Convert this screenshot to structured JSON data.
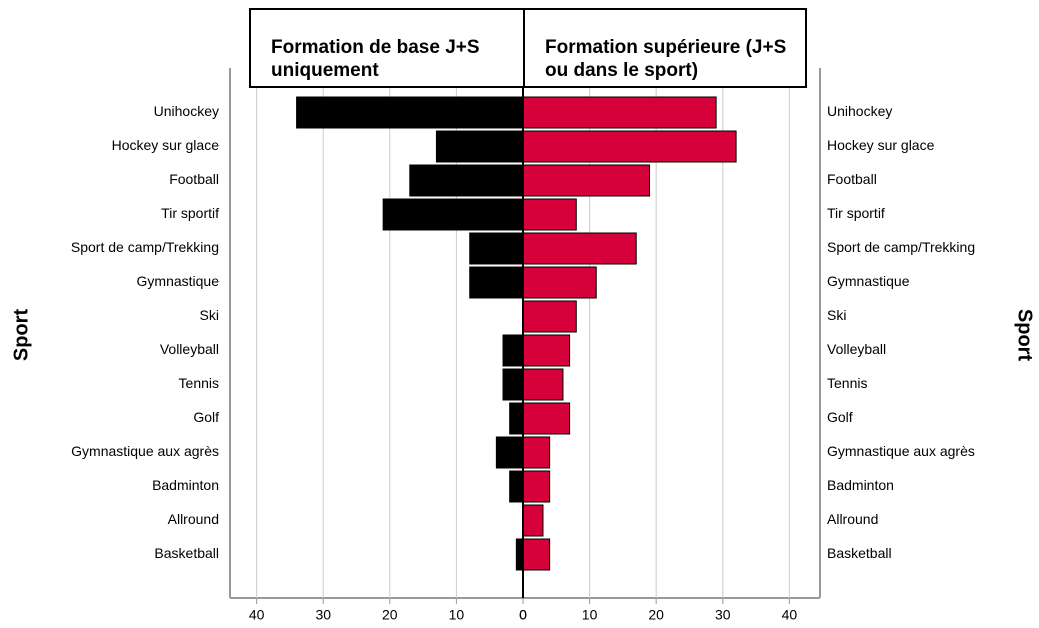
{
  "chart_data": {
    "type": "butterfly",
    "categories": [
      "Unihockey",
      "Hockey sur glace",
      "Football",
      "Tir sportif",
      "Sport de camp/Trekking",
      "Gymnastique",
      "Ski",
      "Volleyball",
      "Tennis",
      "Golf",
      "Gymnastique aux agrès",
      "Badminton",
      "Allround",
      "Basketball"
    ],
    "series": [
      {
        "name": "Formation de base J+S uniquement",
        "color": "#000000",
        "side": "left",
        "values": [
          34,
          13,
          17,
          21,
          8,
          8,
          0,
          3,
          3,
          2,
          4,
          2,
          0,
          1
        ]
      },
      {
        "name": "Formation supérieure (J+S ou dans le sport)",
        "color": "#d6003a",
        "side": "right",
        "values": [
          29,
          32,
          19,
          8,
          17,
          11,
          8,
          7,
          6,
          7,
          4,
          4,
          3,
          4
        ]
      }
    ],
    "ylabel": "Sport",
    "xlim": [
      0,
      44
    ],
    "xticks": [
      0,
      10,
      20,
      30,
      40
    ],
    "grid": true
  }
}
